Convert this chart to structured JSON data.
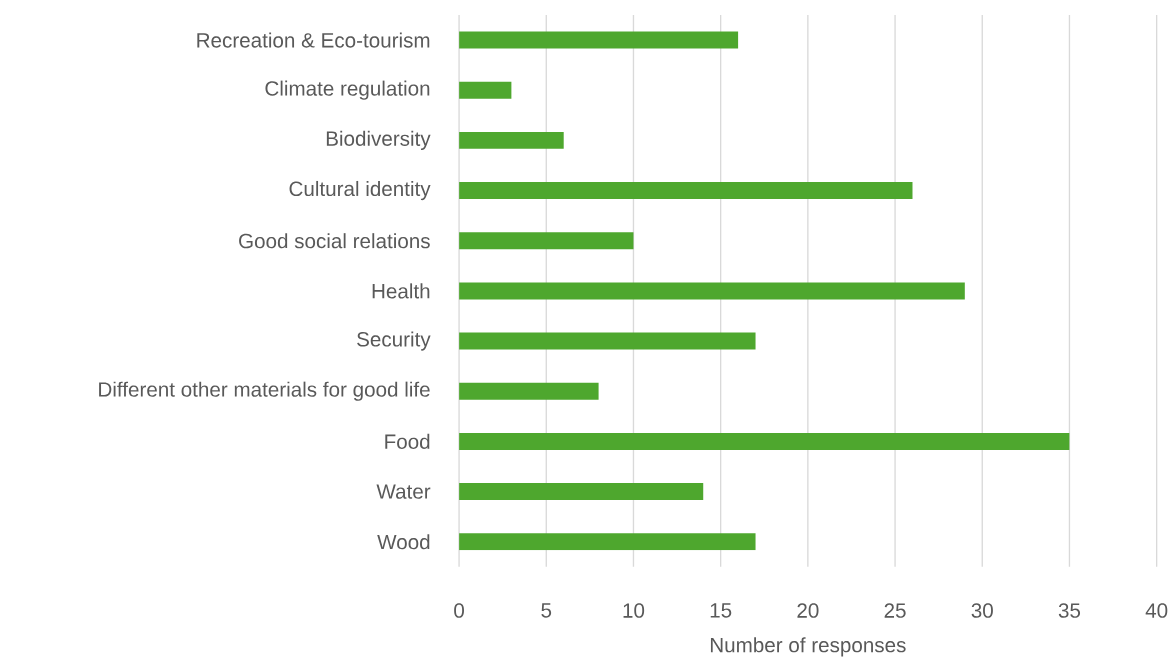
{
  "chart_data": {
    "type": "bar",
    "orientation": "horizontal",
    "xlabel": "Number of responses",
    "categories": [
      "Recreation & Eco-tourism",
      "Climate regulation",
      "Biodiversity",
      "Cultural identity",
      "Good social relations",
      "Health",
      "Security",
      "Different other materials for good life",
      "Food",
      "Water",
      "Wood"
    ],
    "values": [
      16,
      3,
      6,
      26,
      10,
      29,
      17,
      8,
      35,
      14,
      17
    ],
    "color": "#4ea72e",
    "xlim": [
      0,
      40
    ],
    "xticks": [
      0,
      5,
      10,
      15,
      20,
      25,
      30,
      35,
      40
    ],
    "grid": "x"
  }
}
